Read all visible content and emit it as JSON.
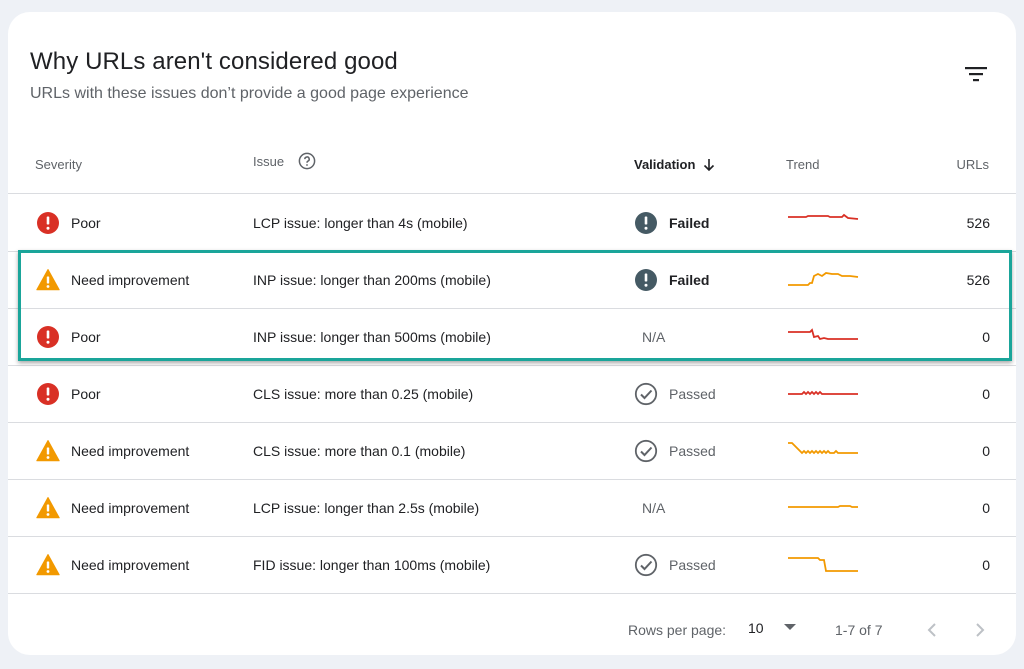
{
  "header": {
    "title": "Why URLs aren't considered good",
    "subtitle": "URLs with these issues don’t provide a good page experience",
    "filter_icon": "filter-list-icon"
  },
  "columns": {
    "severity": "Severity",
    "issue": "Issue",
    "validation": "Validation",
    "trend": "Trend",
    "urls": "URLs"
  },
  "colors": {
    "poor": "#d93025",
    "need_improvement": "#f29900",
    "failed": "#455a64",
    "passed": "#5f6368",
    "highlight": "#1aa59a"
  },
  "rows": [
    {
      "severity": "Poor",
      "severity_icon": "error-icon",
      "issue": "LCP issue: longer than 4s (mobile)",
      "validation": "Failed",
      "validation_icon": "failed-icon",
      "urls": "526"
    },
    {
      "severity": "Need improvement",
      "severity_icon": "warning-icon",
      "issue": "INP issue: longer than 200ms (mobile)",
      "validation": "Failed",
      "validation_icon": "failed-icon",
      "urls": "526"
    },
    {
      "severity": "Poor",
      "severity_icon": "error-icon",
      "issue": "INP issue: longer than 500ms (mobile)",
      "validation": "N/A",
      "validation_icon": "",
      "urls": "0"
    },
    {
      "severity": "Poor",
      "severity_icon": "error-icon",
      "issue": "CLS issue: more than 0.25 (mobile)",
      "validation": "Passed",
      "validation_icon": "passed-icon",
      "urls": "0"
    },
    {
      "severity": "Need improvement",
      "severity_icon": "warning-icon",
      "issue": "CLS issue: more than 0.1 (mobile)",
      "validation": "Passed",
      "validation_icon": "passed-icon",
      "urls": "0"
    },
    {
      "severity": "Need improvement",
      "severity_icon": "warning-icon",
      "issue": "LCP issue: longer than 2.5s (mobile)",
      "validation": "N/A",
      "validation_icon": "",
      "urls": "0"
    },
    {
      "severity": "Need improvement",
      "severity_icon": "warning-icon",
      "issue": "FID issue: longer than 100ms (mobile)",
      "validation": "Passed",
      "validation_icon": "passed-icon",
      "urls": "0"
    }
  ],
  "footer": {
    "rows_per_page_label": "Rows per page:",
    "rows_per_page_value": "10",
    "range": "1-7 of 7",
    "prev_icon": "chevron-left-icon",
    "next_icon": "chevron-right-icon"
  }
}
